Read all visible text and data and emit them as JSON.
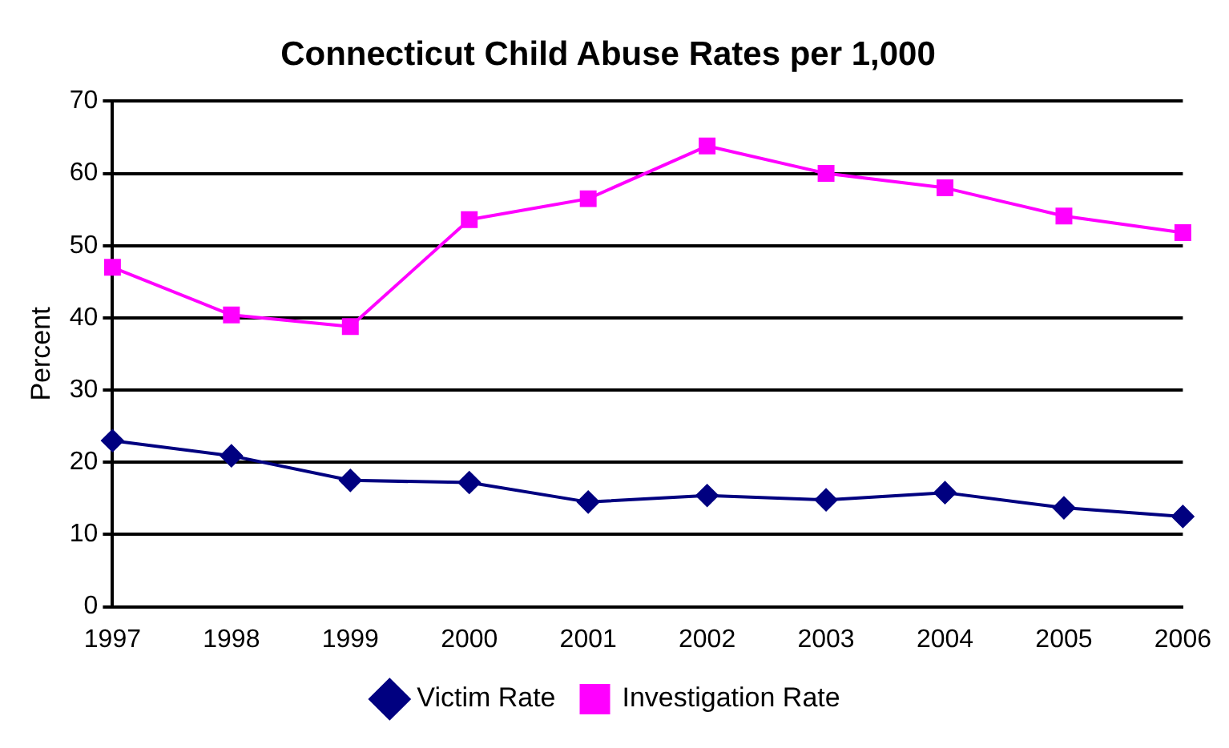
{
  "chart_data": {
    "type": "line",
    "title": "Connecticut Child Abuse Rates per 1,000",
    "ylabel": "Percent",
    "categories": [
      "1997",
      "1998",
      "1999",
      "2000",
      "2001",
      "2002",
      "2003",
      "2004",
      "2005",
      "2006"
    ],
    "series": [
      {
        "name": "Victim Rate",
        "color": "#000080",
        "marker": "diamond",
        "values": [
          23.0,
          20.9,
          17.5,
          17.2,
          14.5,
          15.4,
          14.8,
          15.8,
          13.7,
          12.5
        ]
      },
      {
        "name": "Investigation Rate",
        "color": "#ff00ff",
        "marker": "square",
        "values": [
          47.0,
          40.4,
          38.8,
          53.6,
          56.5,
          63.8,
          60.0,
          58.0,
          54.1,
          51.8
        ]
      }
    ],
    "ylim": [
      0,
      70
    ],
    "yticks": [
      0,
      10,
      20,
      30,
      40,
      50,
      60,
      70
    ],
    "grid": "y",
    "legend": "bottom",
    "line_style": "solid"
  }
}
